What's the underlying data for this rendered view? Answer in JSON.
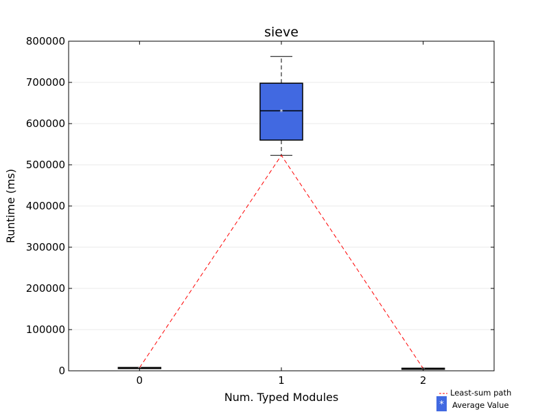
{
  "chart_data": {
    "type": "box",
    "title": "sieve",
    "xlabel": "Num. Typed Modules",
    "ylabel": "Runtime (ms)",
    "ylim": [
      0,
      800000
    ],
    "yticks": [
      0,
      100000,
      200000,
      300000,
      400000,
      500000,
      600000,
      700000,
      800000
    ],
    "ytick_labels": [
      "0",
      "100000",
      "200000",
      "300000",
      "400000",
      "500000",
      "600000",
      "700000",
      "800000"
    ],
    "xlim": [
      -0.5,
      2.5
    ],
    "categories": [
      0,
      1,
      2
    ],
    "category_labels": [
      "0",
      "1",
      "2"
    ],
    "grid": "horizontal",
    "boxes": [
      {
        "x": 0,
        "whisker_low": 7500,
        "q1": 7500,
        "median": 7500,
        "q3": 8000,
        "whisker_high": 8200,
        "mean": 7800
      },
      {
        "x": 1,
        "whisker_low": 523000,
        "q1": 560000,
        "median": 631000,
        "q3": 698000,
        "whisker_high": 763000,
        "mean": 630000
      },
      {
        "x": 2,
        "whisker_low": 5500,
        "q1": 5500,
        "median": 5800,
        "q3": 6200,
        "whisker_high": 6400,
        "mean": 6000
      }
    ],
    "least_sum_path": {
      "x": [
        0,
        1,
        2
      ],
      "y": [
        7500,
        523000,
        5500
      ]
    },
    "legend": {
      "position": "bottom-right",
      "items": [
        {
          "label": "Least-sum path",
          "style": "red-dashed-line"
        },
        {
          "label": "Average Value",
          "style": "blue-box-star"
        }
      ]
    },
    "colors": {
      "box_fill": "#4169e1",
      "path": "#ff0000",
      "median": "#000000",
      "grid": "#e8e8e8"
    }
  }
}
